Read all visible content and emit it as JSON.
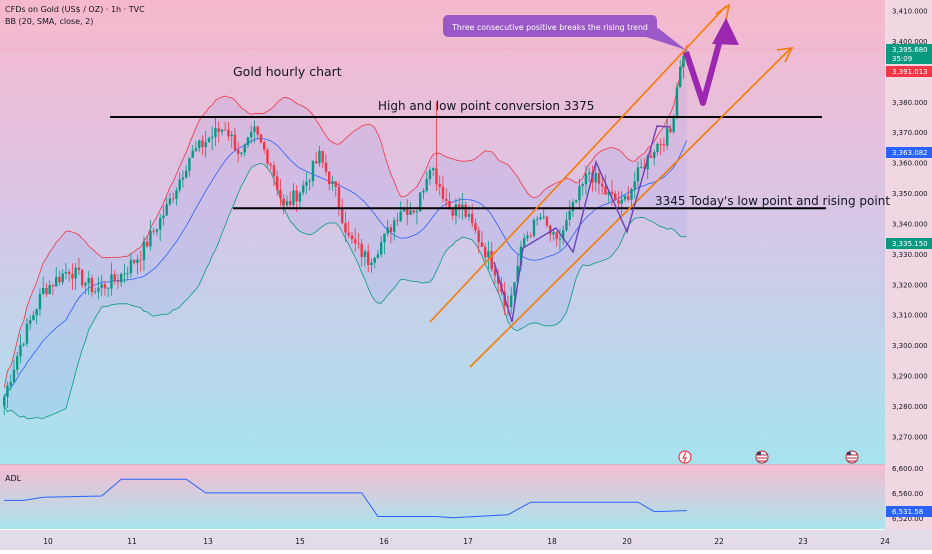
{
  "header": {
    "symbol_line": "CFDs on Gold (US$ / OZ) · 1h · TVC",
    "indicator_line": "BB (20, SMA, close, 2)"
  },
  "annotations": {
    "chart_title": "Gold hourly chart",
    "resistance_label": "High and low point conversion 3375",
    "support_label": "3345 Today's low point and rising point",
    "callout": "Three consecutive positive breaks the rising trend"
  },
  "price_badges": [
    {
      "text": "3,395.680",
      "color": "#089981"
    },
    {
      "text": "35:09",
      "color": "#089981"
    },
    {
      "text": "3,391.013",
      "color": "#f23645"
    },
    {
      "text": "3,363.082",
      "color": "#2962ff"
    },
    {
      "text": "3,335.150",
      "color": "#089981"
    }
  ],
  "adl": {
    "label": "ADL",
    "badge": "6,531.58",
    "badge_color": "#2962ff"
  },
  "colors": {
    "up": "#089981",
    "down": "#f23645",
    "middle_band": "#2962ff",
    "trend": "#f57c00",
    "zigzag": "#7e57c2",
    "arrow": "#9c27b0",
    "adl_line": "#2962ff"
  },
  "chart_data": {
    "type": "candlestick",
    "y_axis": {
      "range": [
        3265,
        3412
      ],
      "ticks": [
        "3,410.000",
        "3,400.000",
        "3,390.000",
        "3,380.000",
        "3,370.000",
        "3,360.000",
        "3,350.000",
        "3,340.000",
        "3,330.000",
        "3,320.000",
        "3,310.000",
        "3,300.000",
        "3,290.000",
        "3,280.000",
        "3,270.000"
      ],
      "tick_values": [
        3410,
        3400,
        3390,
        3380,
        3370,
        3360,
        3350,
        3340,
        3330,
        3320,
        3310,
        3300,
        3290,
        3280,
        3270
      ]
    },
    "x_axis": {
      "ticks": [
        "10",
        "11",
        "13",
        "15",
        "16",
        "17",
        "18",
        "20",
        "22",
        "23",
        "24"
      ]
    },
    "horizontal_levels": [
      {
        "price": 3375
      },
      {
        "price": 3345
      }
    ],
    "candle_anchors": [
      [
        0,
        3283
      ],
      [
        5,
        3300
      ],
      [
        12,
        3318
      ],
      [
        20,
        3325
      ],
      [
        28,
        3318
      ],
      [
        35,
        3322
      ],
      [
        42,
        3330
      ],
      [
        50,
        3345
      ],
      [
        57,
        3362
      ],
      [
        63,
        3368
      ],
      [
        68,
        3372
      ],
      [
        73,
        3362
      ],
      [
        77,
        3370
      ],
      [
        82,
        3360
      ],
      [
        86,
        3345
      ],
      [
        92,
        3352
      ],
      [
        97,
        3362
      ],
      [
        102,
        3350
      ],
      [
        106,
        3335
      ],
      [
        112,
        3328
      ],
      [
        117,
        3335
      ],
      [
        122,
        3345
      ],
      [
        127,
        3345
      ],
      [
        131,
        3360
      ],
      [
        137,
        3345
      ],
      [
        141,
        3345
      ],
      [
        146,
        3335
      ],
      [
        151,
        3325
      ],
      [
        155,
        3312
      ],
      [
        160,
        3335
      ],
      [
        165,
        3342
      ],
      [
        170,
        3333
      ],
      [
        175,
        3345
      ],
      [
        180,
        3357
      ],
      [
        185,
        3350
      ],
      [
        190,
        3346
      ],
      [
        195,
        3356
      ],
      [
        200,
        3365
      ],
      [
        205,
        3370
      ],
      [
        208,
        3393
      ],
      [
        210,
        3395.68
      ]
    ],
    "adl_series": {
      "y_range": [
        6510,
        6600
      ],
      "y_ticks": [
        "6,600.00",
        "6,560.00",
        "6,520.00"
      ],
      "y_tick_values": [
        6600,
        6560,
        6520
      ]
    }
  }
}
